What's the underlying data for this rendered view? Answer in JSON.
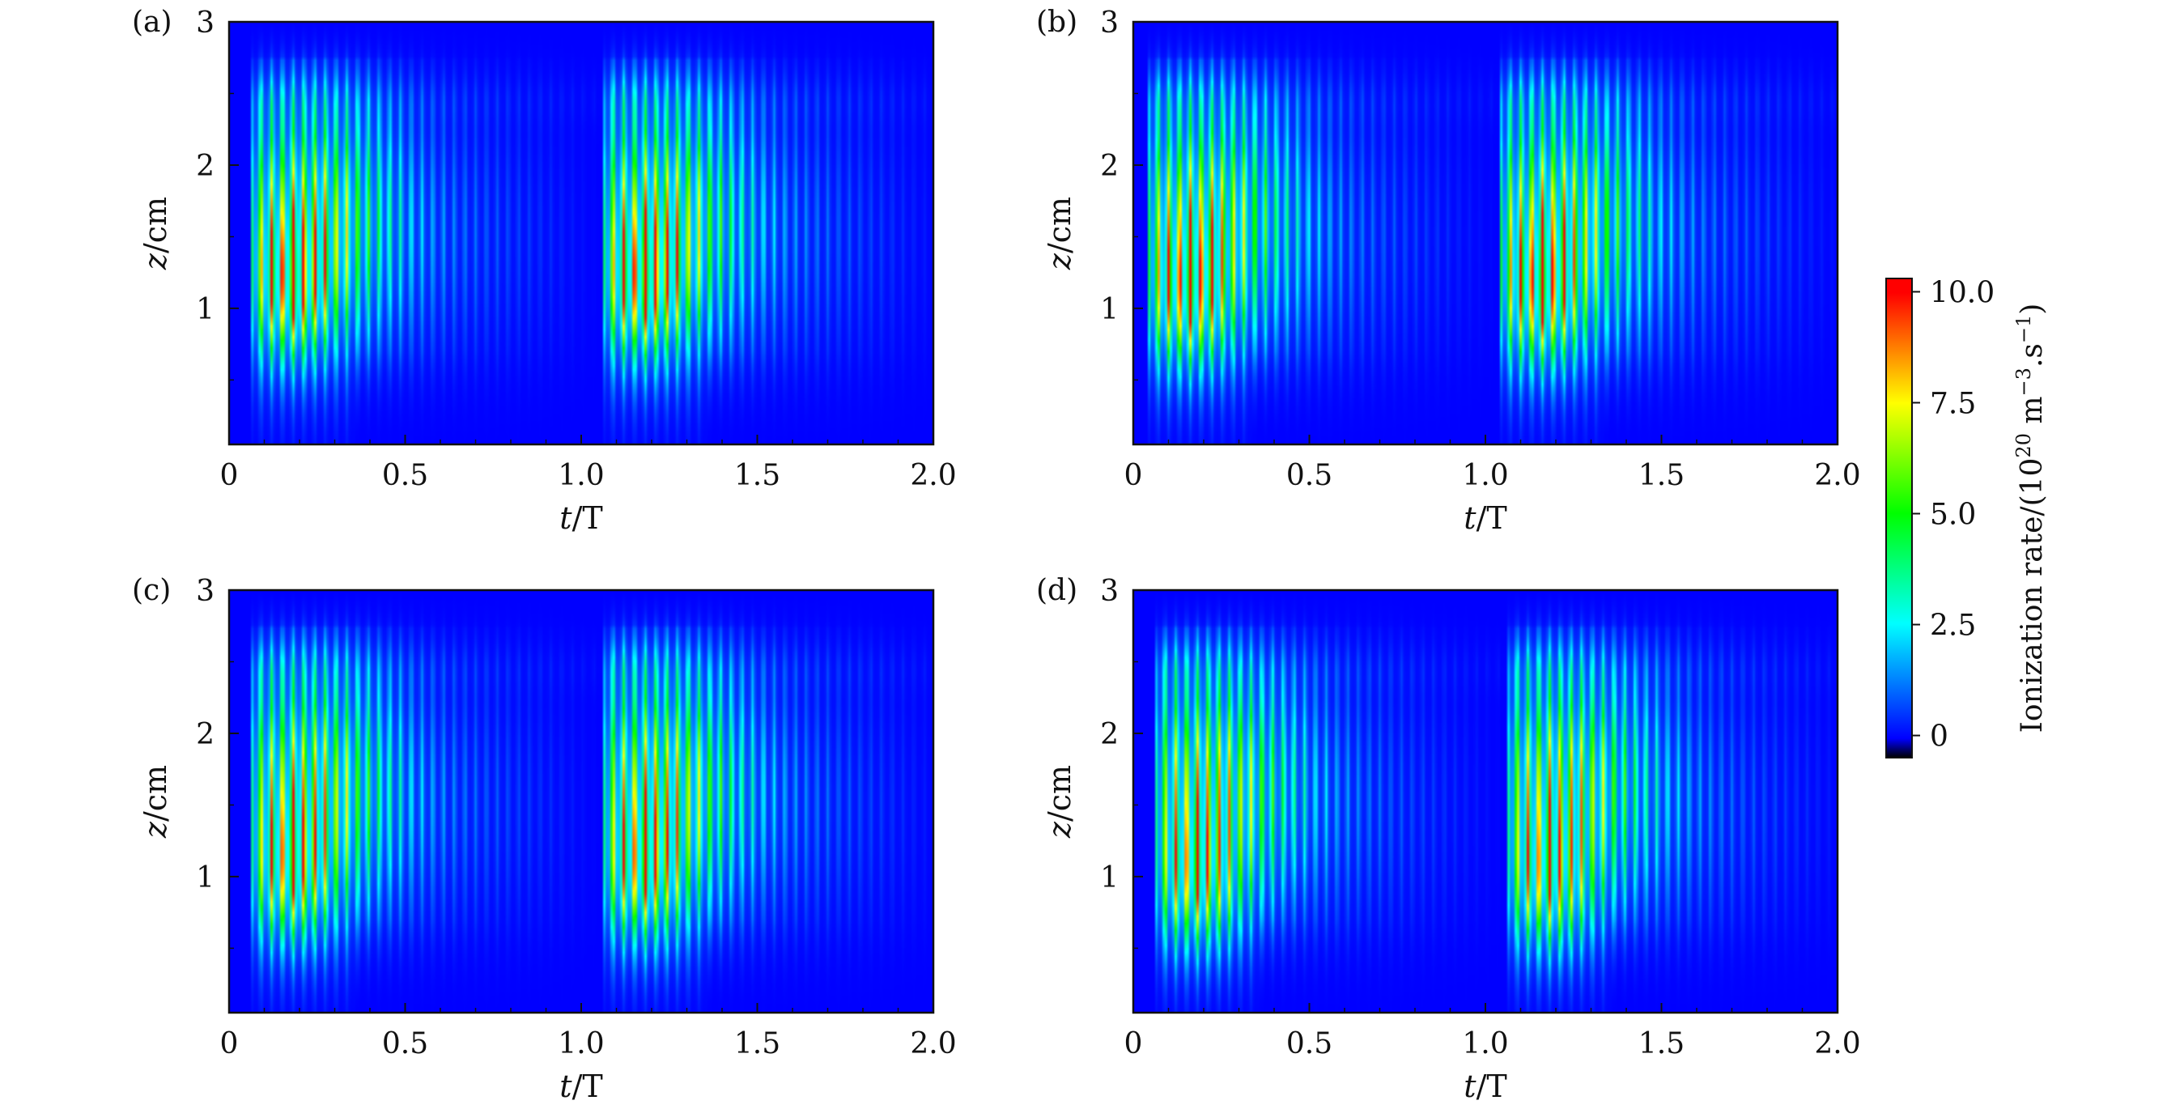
{
  "chart_data": {
    "type": "heatmap",
    "panels": [
      {
        "label": "(a)",
        "xlabel": "t/T",
        "ylabel": "z/cm",
        "xlim": [
          0,
          2.0
        ],
        "ylim": [
          0.05,
          3
        ],
        "xticks": [
          "0",
          "0.5",
          "1.0",
          "1.5",
          "2.0"
        ],
        "yticks": [
          "1",
          "2",
          "3"
        ],
        "pulse_starts": [
          0.06,
          1.06
        ],
        "pulse_end": 0.52,
        "peak_z": 1.1,
        "burst_end": 0.3
      },
      {
        "label": "(b)",
        "xlabel": "t/T",
        "ylabel": "z/cm",
        "xlim": [
          0,
          2.0
        ],
        "ylim": [
          0.05,
          3
        ],
        "xticks": [
          "0",
          "0.5",
          "1.0",
          "1.5",
          "2.0"
        ],
        "yticks": [
          "1",
          "2",
          "3"
        ],
        "pulse_starts": [
          0.04,
          1.04
        ],
        "pulse_end": 0.48,
        "peak_z": 1.05,
        "burst_end": 0.3
      },
      {
        "label": "(c)",
        "xlabel": "t/T",
        "ylabel": "z/cm",
        "xlim": [
          0,
          2.0
        ],
        "ylim": [
          0.05,
          3
        ],
        "xticks": [
          "0",
          "0.5",
          "1.0",
          "1.5",
          "2.0"
        ],
        "yticks": [
          "1",
          "2",
          "3"
        ],
        "pulse_starts": [
          0.06,
          1.06
        ],
        "pulse_end": 0.52,
        "peak_z": 1.0,
        "burst_end": 0.3
      },
      {
        "label": "(d)",
        "xlabel": "t/T",
        "ylabel": "z/cm",
        "xlim": [
          0,
          2.0
        ],
        "ylim": [
          0.05,
          3
        ],
        "xticks": [
          "0",
          "0.5",
          "1.0",
          "1.5",
          "2.0"
        ],
        "yticks": [
          "1",
          "2",
          "3"
        ],
        "pulse_starts": [
          0.06,
          1.06
        ],
        "pulse_end": 0.5,
        "peak_z": 0.95,
        "burst_end": 0.3
      }
    ],
    "colorbar": {
      "label_main": "Ionization rate/(10",
      "label_exp1": "20",
      "label_unit": " m",
      "label_exp2": "−3",
      "label_mid": ".s",
      "label_exp3": "−1",
      "label_close": ")",
      "ticks": [
        "0",
        "2.5",
        "5.0",
        "7.5",
        "10.0"
      ],
      "tick_values": [
        0,
        2.5,
        5.0,
        7.5,
        10.0
      ],
      "range": [
        -0.5,
        10.3
      ],
      "colormap": [
        "#000000",
        "#0000ff",
        "#00ffff",
        "#00ff00",
        "#ffff00",
        "#ff0000"
      ]
    }
  }
}
